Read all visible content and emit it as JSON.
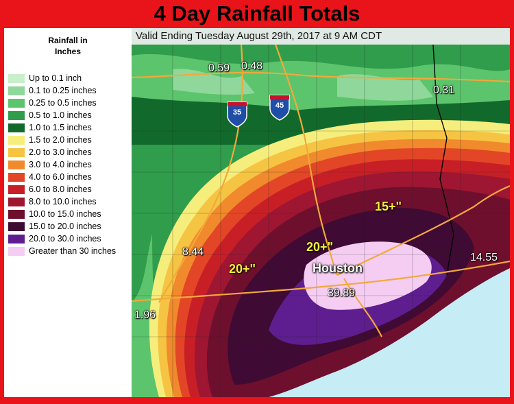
{
  "title": "4 Day Rainfall Totals",
  "valid_text": "Valid Ending Tuesday August 29th, 2017 at 9 AM CDT",
  "legend": {
    "heading_line1": "Rainfall in",
    "heading_line2": "Inches",
    "items": [
      {
        "label": "Up to 0.1 inch",
        "color": "#c7efc9"
      },
      {
        "label": "0.1 to 0.25 inches",
        "color": "#8fd79a"
      },
      {
        "label": "0.25 to 0.5 inches",
        "color": "#5cc46c"
      },
      {
        "label": "0.5 to 1.0 inches",
        "color": "#2f9d4b"
      },
      {
        "label": "1.0 to 1.5 inches",
        "color": "#116a2b"
      },
      {
        "label": "1.5 to 2.0 inches",
        "color": "#f6ee7c"
      },
      {
        "label": "2.0 to 3.0 inches",
        "color": "#f6c443"
      },
      {
        "label": "3.0 to 4.0 inches",
        "color": "#f08a2c"
      },
      {
        "label": "4.0 to 6.0 inches",
        "color": "#e34626"
      },
      {
        "label": "6.0 to 8.0 inches",
        "color": "#c81f27"
      },
      {
        "label": "8.0 to 10.0 inches",
        "color": "#9e1632"
      },
      {
        "label": "10.0 to 15.0 inches",
        "color": "#6e0f2e"
      },
      {
        "label": "15.0 to 20.0 inches",
        "color": "#3f0a33"
      },
      {
        "label": "20.0 to 30.0 inches",
        "color": "#5e1e8f"
      },
      {
        "label": "Greater than 30 inches",
        "color": "#f5cdf2"
      }
    ]
  },
  "observations": {
    "v059": "0.59",
    "v048": "0.48",
    "v031": "0.31",
    "v844": "8.44",
    "v196": "1.96",
    "v3989": "39.89",
    "v1455": "14.55"
  },
  "zones": {
    "z15": "15+\"",
    "z20a": "20+\"",
    "z20b": "20+\""
  },
  "city": "Houston",
  "highways": {
    "i35": "35",
    "i45": "45"
  }
}
